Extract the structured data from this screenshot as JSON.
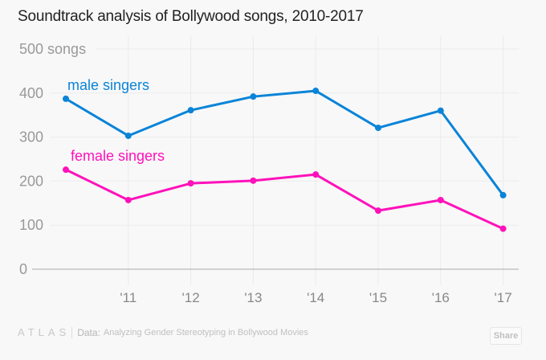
{
  "chart_data": {
    "type": "line",
    "title": "Soundtrack analysis of Bollywood songs, 2010-2017",
    "xlabel": "",
    "ylabel": "songs",
    "x": [
      2010,
      2011,
      2012,
      2013,
      2014,
      2015,
      2016,
      2017
    ],
    "x_tick_labels": [
      "",
      "'11",
      "'12",
      "'13",
      "'14",
      "'15",
      "'16",
      "'17"
    ],
    "y_ticks": [
      0,
      100,
      200,
      300,
      400,
      500
    ],
    "y_tick_labels": [
      "0",
      "100",
      "200",
      "300",
      "400",
      "500 songs"
    ],
    "ylim": [
      0,
      500
    ],
    "grid": true,
    "series": [
      {
        "name": "male singers",
        "color": "#0a84d8",
        "values": [
          387,
          303,
          361,
          392,
          405,
          321,
          360,
          168
        ]
      },
      {
        "name": "female singers",
        "color": "#ff11bb",
        "values": [
          226,
          157,
          195,
          201,
          215,
          133,
          157,
          92
        ]
      }
    ]
  },
  "footer": {
    "brand": "ATLAS",
    "data_label": "Data:",
    "source": "Analyzing Gender Stereotyping in Bollywood Movies",
    "share_label": "Share"
  }
}
